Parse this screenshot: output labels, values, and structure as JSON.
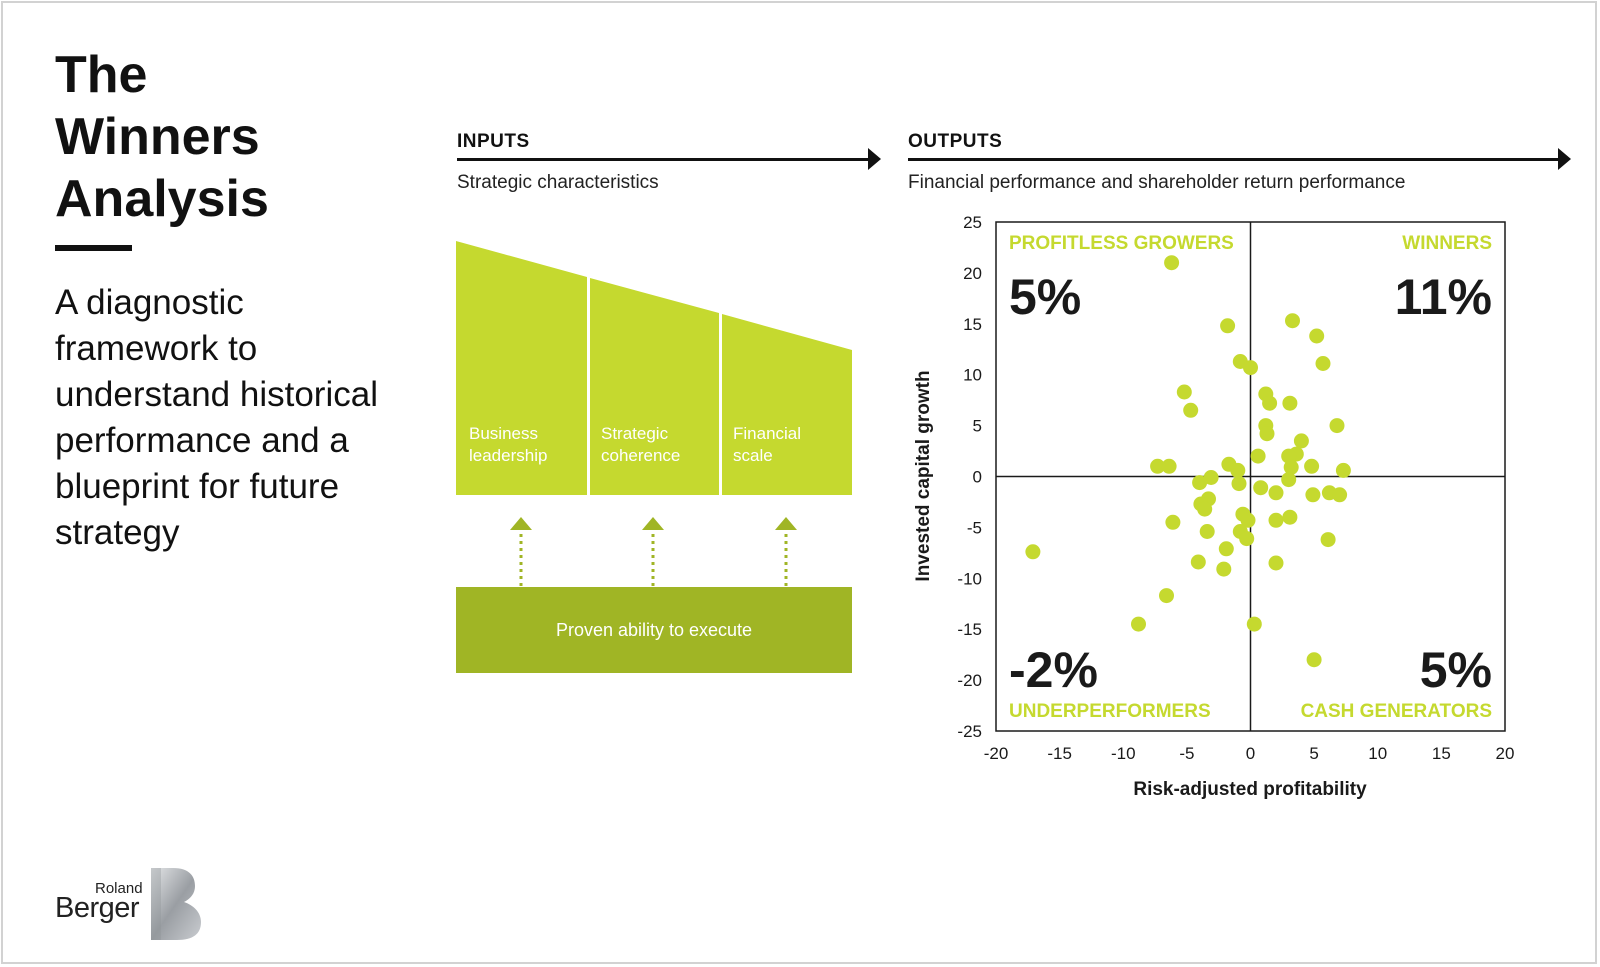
{
  "title_lines": [
    "The",
    "Winners",
    "Analysis"
  ],
  "subtitle_lines": [
    "A diagnostic",
    "framework to",
    "understand historical",
    "performance and a",
    "blueprint for future",
    "strategy"
  ],
  "inputs": {
    "label": "INPUTS",
    "sublabel": "Strategic characteristics",
    "panels": [
      {
        "line1": "Business",
        "line2": "leadership"
      },
      {
        "line1": "Strategic",
        "line2": "coherence"
      },
      {
        "line1": "Financial",
        "line2": "scale"
      }
    ],
    "base_label": "Proven ability to execute",
    "panel_color": "#c5d92f",
    "base_color": "#a0b525"
  },
  "outputs": {
    "label": "OUTPUTS",
    "sublabel": "Financial performance and shareholder return performance"
  },
  "logo": {
    "line1": "Roland",
    "line2": "Berger"
  },
  "chart_data": {
    "type": "scatter",
    "xlabel": "Risk-adjusted profitability",
    "ylabel": "Invested capital growth",
    "xlim": [
      -20,
      20
    ],
    "ylim": [
      -25,
      25
    ],
    "xticks": [
      -20,
      -15,
      -10,
      -5,
      0,
      5,
      10,
      15,
      20
    ],
    "yticks": [
      25,
      20,
      15,
      10,
      5,
      0,
      -5,
      -10,
      -15,
      -20,
      -25
    ],
    "point_color": "#c5d92f",
    "grid": false,
    "quadrants": [
      {
        "name": "PROFITLESS GROWERS",
        "value": "5%",
        "position": "top-left"
      },
      {
        "name": "WINNERS",
        "value": "11%",
        "position": "top-right"
      },
      {
        "name": "UNDERPERFORMERS",
        "value": "-2%",
        "position": "bottom-left"
      },
      {
        "name": "CASH GENERATORS",
        "value": "5%",
        "position": "bottom-right"
      }
    ],
    "points": [
      [
        -6.2,
        21
      ],
      [
        -1.8,
        14.8
      ],
      [
        3.3,
        15.3
      ],
      [
        5.2,
        13.8
      ],
      [
        5.7,
        11.1
      ],
      [
        -0.8,
        11.3
      ],
      [
        0,
        10.7
      ],
      [
        -5.2,
        8.3
      ],
      [
        -4.7,
        6.5
      ],
      [
        1.2,
        8.1
      ],
      [
        1.5,
        7.2
      ],
      [
        3.1,
        7.2
      ],
      [
        1.2,
        5
      ],
      [
        1.3,
        4.2
      ],
      [
        6.8,
        5
      ],
      [
        4,
        3.5
      ],
      [
        3.6,
        2.2
      ],
      [
        0.6,
        2
      ],
      [
        3,
        2
      ],
      [
        3.2,
        0.9
      ],
      [
        4.8,
        1
      ],
      [
        -1.7,
        1.2
      ],
      [
        -1,
        0.6
      ],
      [
        -7.3,
        1
      ],
      [
        -6.4,
        1
      ],
      [
        -3.1,
        -0.1
      ],
      [
        -4,
        -0.6
      ],
      [
        -0.9,
        -0.7
      ],
      [
        -3.3,
        -2.2
      ],
      [
        -3.9,
        -2.7
      ],
      [
        -3.6,
        -3.2
      ],
      [
        0.8,
        -1.1
      ],
      [
        3,
        -0.3
      ],
      [
        2,
        -1.6
      ],
      [
        4.9,
        -1.8
      ],
      [
        6.2,
        -1.6
      ],
      [
        7,
        -1.8
      ],
      [
        7.3,
        0.6
      ],
      [
        -0.6,
        -3.7
      ],
      [
        -0.2,
        -4.3
      ],
      [
        2,
        -4.3
      ],
      [
        3.1,
        -4
      ],
      [
        -6.1,
        -4.5
      ],
      [
        -3.4,
        -5.4
      ],
      [
        -0.8,
        -5.4
      ],
      [
        -0.3,
        -6.1
      ],
      [
        6.1,
        -6.2
      ],
      [
        -1.9,
        -7.1
      ],
      [
        -4.1,
        -8.4
      ],
      [
        -2.1,
        -9.1
      ],
      [
        2,
        -8.5
      ],
      [
        -17.1,
        -7.4
      ],
      [
        -6.6,
        -11.7
      ],
      [
        -8.8,
        -14.5
      ],
      [
        0.3,
        -14.5
      ],
      [
        5,
        -18
      ]
    ]
  }
}
